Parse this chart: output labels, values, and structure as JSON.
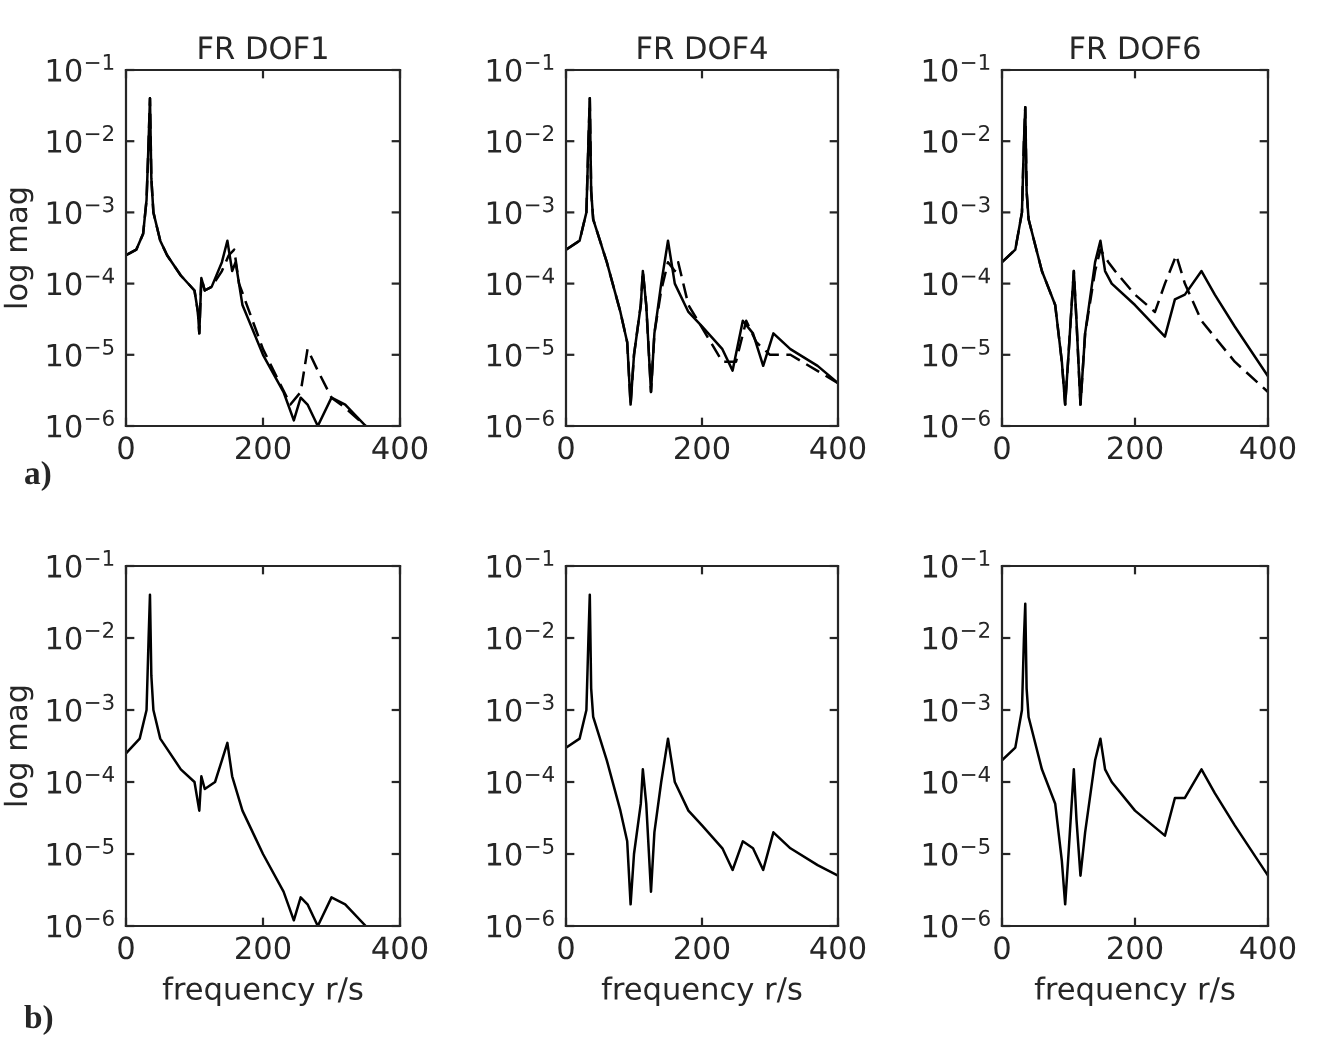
{
  "chart_data": [
    {
      "type": "line",
      "title": "FR DOF1",
      "ylabel": "log mag",
      "annotations": [
        "a)"
      ],
      "log": "y",
      "xlim": [
        0,
        400
      ],
      "xticks": [
        0,
        200,
        400
      ],
      "ylim": [
        1e-06,
        0.1
      ],
      "yticks": [
        {
          "value": 1e-06,
          "label": "10$^{−6}$"
        },
        {
          "value": 1e-05,
          "label": "10$^{−5}$"
        },
        {
          "value": 0.0001,
          "label": "10$^{−4}$"
        },
        {
          "value": 0.001,
          "label": "10$^{−3}$"
        },
        {
          "value": 0.01,
          "label": "10$^{−2}$"
        },
        {
          "value": 0.1,
          "label": "10$^{−1}$"
        }
      ],
      "grid": false,
      "legend": false,
      "series": [
        {
          "color": "#000000",
          "line_style": "solid",
          "x": [
            0,
            15,
            25,
            30,
            33,
            35,
            37,
            40,
            50,
            60,
            80,
            100,
            105,
            107,
            110,
            115,
            125,
            140,
            148,
            155,
            160,
            170,
            200,
            230,
            245,
            255,
            265,
            280,
            300,
            320,
            350
          ],
          "values": [
            0.00025,
            0.0003,
            0.0005,
            0.0015,
            0.01,
            0.04,
            0.003,
            0.001,
            0.0004,
            0.00025,
            0.00013,
            8e-05,
            4e-05,
            2e-05,
            0.00012,
            8e-05,
            9e-05,
            0.0002,
            0.0004,
            0.00015,
            0.0002,
            5e-05,
            1e-05,
            3e-06,
            1.2e-06,
            2.5e-06,
            2e-06,
            1e-06,
            2.5e-06,
            2e-06,
            1e-06
          ]
        },
        {
          "color": "#000000",
          "line_style": "dashed",
          "x": [
            0,
            15,
            25,
            30,
            33,
            35,
            37,
            40,
            50,
            60,
            80,
            100,
            105,
            107,
            110,
            115,
            125,
            140,
            150,
            158,
            165,
            200,
            240,
            255,
            265,
            280,
            300,
            320,
            350
          ],
          "values": [
            0.00025,
            0.0003,
            0.0005,
            0.0015,
            0.01,
            0.04,
            0.003,
            0.001,
            0.0004,
            0.00025,
            0.00013,
            8e-05,
            4e-05,
            2e-05,
            0.00012,
            8e-05,
            9e-05,
            0.00015,
            0.00025,
            0.0003,
            0.0001,
            1.2e-05,
            2e-06,
            3e-06,
            1.2e-05,
            6e-06,
            2.5e-06,
            1.8e-06,
            1e-06
          ]
        }
      ]
    },
    {
      "type": "line",
      "title": "FR DOF4",
      "log": "y",
      "xlim": [
        0,
        400
      ],
      "xticks": [
        0,
        200,
        400
      ],
      "ylim": [
        1e-06,
        0.1
      ],
      "yticks": [
        {
          "value": 1e-06,
          "label": "10$^{−6}$"
        },
        {
          "value": 1e-05,
          "label": "10$^{−5}$"
        },
        {
          "value": 0.0001,
          "label": "10$^{−4}$"
        },
        {
          "value": 0.001,
          "label": "10$^{−3}$"
        },
        {
          "value": 0.01,
          "label": "10$^{−2}$"
        },
        {
          "value": 0.1,
          "label": "10$^{−1}$"
        }
      ],
      "grid": false,
      "legend": false,
      "series": [
        {
          "color": "#000000",
          "line_style": "solid",
          "x": [
            0,
            20,
            30,
            33,
            35,
            37,
            40,
            60,
            80,
            90,
            95,
            100,
            110,
            113,
            118,
            125,
            130,
            140,
            150,
            160,
            180,
            200,
            230,
            245,
            260,
            275,
            290,
            305,
            330,
            370,
            400
          ],
          "values": [
            0.0003,
            0.0004,
            0.001,
            0.01,
            0.04,
            0.002,
            0.0008,
            0.0002,
            4e-05,
            1.5e-05,
            2e-06,
            1e-05,
            5e-05,
            0.00015,
            5e-05,
            3e-06,
            2e-05,
            0.0001,
            0.0004,
            0.0001,
            4e-05,
            2.5e-05,
            1.2e-05,
            6e-06,
            3e-05,
            2e-05,
            7e-06,
            2e-05,
            1.2e-05,
            7e-06,
            4e-06
          ]
        },
        {
          "color": "#000000",
          "line_style": "dashed",
          "x": [
            0,
            20,
            30,
            33,
            35,
            37,
            40,
            60,
            80,
            90,
            95,
            100,
            110,
            113,
            118,
            125,
            130,
            140,
            150,
            160,
            165,
            180,
            230,
            250,
            265,
            280,
            300,
            330,
            400
          ],
          "values": [
            0.0003,
            0.0004,
            0.001,
            0.01,
            0.04,
            0.002,
            0.0008,
            0.0002,
            4e-05,
            1.5e-05,
            2e-06,
            1e-05,
            5e-05,
            0.00015,
            5e-05,
            3e-06,
            2e-05,
            8e-05,
            0.0002,
            0.00015,
            0.0002,
            5e-05,
            8e-06,
            8e-06,
            3e-05,
            1.5e-05,
            1e-05,
            1e-05,
            4e-06
          ]
        }
      ]
    },
    {
      "type": "line",
      "title": "FR DOF6",
      "log": "y",
      "xlim": [
        0,
        400
      ],
      "xticks": [
        0,
        200,
        400
      ],
      "ylim": [
        1e-06,
        0.1
      ],
      "yticks": [
        {
          "value": 1e-06,
          "label": "10$^{−6}$"
        },
        {
          "value": 1e-05,
          "label": "10$^{−5}$"
        },
        {
          "value": 0.0001,
          "label": "10$^{−4}$"
        },
        {
          "value": 0.001,
          "label": "10$^{−3}$"
        },
        {
          "value": 0.01,
          "label": "10$^{−2}$"
        },
        {
          "value": 0.1,
          "label": "10$^{−1}$"
        }
      ],
      "grid": false,
      "legend": false,
      "series": [
        {
          "color": "#000000",
          "line_style": "solid",
          "x": [
            0,
            20,
            30,
            33,
            35,
            37,
            40,
            60,
            80,
            90,
            95,
            100,
            108,
            112,
            118,
            125,
            140,
            148,
            155,
            165,
            200,
            245,
            260,
            275,
            300,
            320,
            350,
            400
          ],
          "values": [
            0.0002,
            0.0003,
            0.001,
            0.01,
            0.03,
            0.002,
            0.0008,
            0.00015,
            5e-05,
            8e-06,
            2e-06,
            1e-05,
            0.00015,
            3e-05,
            2e-06,
            2e-05,
            0.0002,
            0.0004,
            0.00015,
            0.0001,
            5e-05,
            1.8e-05,
            6e-05,
            7e-05,
            0.00015,
            7e-05,
            2.5e-05,
            5e-06
          ]
        },
        {
          "color": "#000000",
          "line_style": "dashed",
          "x": [
            0,
            20,
            30,
            33,
            35,
            37,
            40,
            60,
            80,
            90,
            95,
            100,
            108,
            112,
            118,
            125,
            140,
            148,
            160,
            170,
            200,
            230,
            245,
            262,
            275,
            300,
            350,
            400
          ],
          "values": [
            0.0002,
            0.0003,
            0.001,
            0.01,
            0.03,
            0.002,
            0.0008,
            0.00015,
            5e-05,
            8e-06,
            2e-06,
            1e-05,
            0.00015,
            3e-05,
            2e-06,
            2e-05,
            0.00015,
            0.0003,
            0.0002,
            0.00015,
            7e-05,
            4e-05,
            0.0001,
            0.00025,
            0.0001,
            3e-05,
            8e-06,
            3e-06
          ]
        }
      ]
    },
    {
      "type": "line",
      "xlabel": "frequency r/s",
      "ylabel": "log mag",
      "annotations": [
        "b)"
      ],
      "log": "y",
      "xlim": [
        0,
        400
      ],
      "xticks": [
        0,
        200,
        400
      ],
      "ylim": [
        1e-06,
        0.1
      ],
      "yticks": [
        {
          "value": 1e-06,
          "label": "10$^{−6}$"
        },
        {
          "value": 1e-05,
          "label": "10$^{−5}$"
        },
        {
          "value": 0.0001,
          "label": "10$^{−4}$"
        },
        {
          "value": 0.001,
          "label": "10$^{−3}$"
        },
        {
          "value": 0.01,
          "label": "10$^{−2}$"
        },
        {
          "value": 0.1,
          "label": "10$^{−1}$"
        }
      ],
      "grid": false,
      "legend": false,
      "series": [
        {
          "color": "#000000",
          "line_style": "solid",
          "x": [
            0,
            20,
            30,
            33,
            35,
            37,
            40,
            50,
            80,
            100,
            107,
            110,
            115,
            130,
            140,
            148,
            155,
            170,
            200,
            230,
            245,
            255,
            265,
            280,
            300,
            320,
            350
          ],
          "values": [
            0.00025,
            0.0004,
            0.001,
            0.01,
            0.04,
            0.003,
            0.001,
            0.0004,
            0.00015,
            0.0001,
            4e-05,
            0.00012,
            8e-05,
            0.0001,
            0.0002,
            0.00035,
            0.00012,
            4e-05,
            1e-05,
            3e-06,
            1.2e-06,
            2.5e-06,
            2e-06,
            1e-06,
            2.5e-06,
            2e-06,
            1e-06
          ]
        }
      ]
    },
    {
      "type": "line",
      "xlabel": "frequency r/s",
      "log": "y",
      "xlim": [
        0,
        400
      ],
      "xticks": [
        0,
        200,
        400
      ],
      "ylim": [
        1e-06,
        0.1
      ],
      "yticks": [
        {
          "value": 1e-06,
          "label": "10$^{−6}$"
        },
        {
          "value": 1e-05,
          "label": "10$^{−5}$"
        },
        {
          "value": 0.0001,
          "label": "10$^{−4}$"
        },
        {
          "value": 0.001,
          "label": "10$^{−3}$"
        },
        {
          "value": 0.01,
          "label": "10$^{−2}$"
        },
        {
          "value": 0.1,
          "label": "10$^{−1}$"
        }
      ],
      "grid": false,
      "legend": false,
      "series": [
        {
          "color": "#000000",
          "line_style": "solid",
          "x": [
            0,
            20,
            30,
            33,
            35,
            37,
            40,
            60,
            80,
            90,
            95,
            100,
            110,
            113,
            118,
            125,
            130,
            140,
            150,
            160,
            180,
            200,
            230,
            245,
            260,
            275,
            290,
            305,
            330,
            370,
            400
          ],
          "values": [
            0.0003,
            0.0004,
            0.001,
            0.01,
            0.04,
            0.002,
            0.0008,
            0.0002,
            4e-05,
            1.5e-05,
            2e-06,
            1e-05,
            5e-05,
            0.00015,
            5e-05,
            3e-06,
            2e-05,
            0.0001,
            0.0004,
            0.0001,
            4e-05,
            2.5e-05,
            1.2e-05,
            6e-06,
            1.5e-05,
            1.2e-05,
            6e-06,
            2e-05,
            1.2e-05,
            7e-06,
            5e-06
          ]
        }
      ]
    },
    {
      "type": "line",
      "xlabel": "frequency r/s",
      "log": "y",
      "xlim": [
        0,
        400
      ],
      "xticks": [
        0,
        200,
        400
      ],
      "ylim": [
        1e-06,
        0.1
      ],
      "yticks": [
        {
          "value": 1e-06,
          "label": "10$^{−6}$"
        },
        {
          "value": 1e-05,
          "label": "10$^{−5}$"
        },
        {
          "value": 0.0001,
          "label": "10$^{−4}$"
        },
        {
          "value": 0.001,
          "label": "10$^{−3}$"
        },
        {
          "value": 0.01,
          "label": "10$^{−2}$"
        },
        {
          "value": 0.1,
          "label": "10$^{−1}$"
        }
      ],
      "grid": false,
      "legend": false,
      "series": [
        {
          "color": "#000000",
          "line_style": "solid",
          "x": [
            0,
            20,
            30,
            33,
            35,
            37,
            40,
            60,
            80,
            90,
            95,
            100,
            108,
            112,
            118,
            125,
            140,
            148,
            155,
            165,
            200,
            245,
            260,
            275,
            300,
            320,
            350,
            400
          ],
          "values": [
            0.0002,
            0.0003,
            0.001,
            0.01,
            0.03,
            0.002,
            0.0008,
            0.00015,
            5e-05,
            8e-06,
            2e-06,
            1e-05,
            0.00015,
            3e-05,
            5e-06,
            2e-05,
            0.0002,
            0.0004,
            0.00015,
            0.0001,
            4e-05,
            1.8e-05,
            6e-05,
            6e-05,
            0.00015,
            7e-05,
            2.5e-05,
            5e-06
          ]
        }
      ]
    }
  ]
}
